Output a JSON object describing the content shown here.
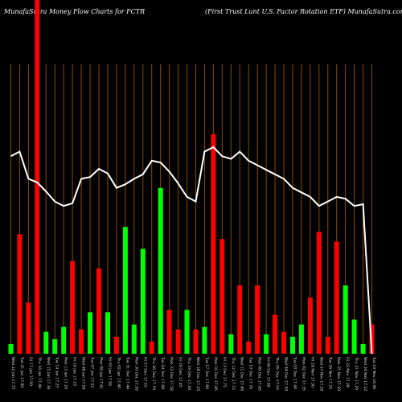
{
  "header": {
    "left": "MunafaSutra  Money Flow  Charts for FCTR",
    "right": "(First Trust Lunt U.S. Factor Rotation ETF) MunafaSutra.com"
  },
  "chart_data": {
    "type": "bar",
    "x_tick_labels": [
      "Wed 22 Jan 17.75",
      "Tue 21 Jan 17.80",
      "Fri 17 Jan 17.50",
      "Thu 16 Jan 17.46",
      "Wed 15 Jan 17.36",
      "Tue 14 Jan 17.25",
      "Mon 13 Jan 17.20",
      "Fri 10 Jan 17.23",
      "Wed 08 Jan 17.50",
      "Tue 07 Jan 17.52",
      "Mon 06 Jan 17.61",
      "Fri 03 Jan 17.56",
      "Thu 02 Jan 17.40",
      "Tue 31 Dec 17.44",
      "Mon 30 Dec 17.50",
      "Fri 27 Dec 17.55",
      "Thu 26 Dec 17.70",
      "Tue 24 Dec 17.68",
      "Mon 23 Dec 17.58",
      "Fri 20 Dec 17.45",
      "Thu 19 Dec 17.30",
      "Wed 18 Dec 17.25",
      "Tue 17 Dec 17.80",
      "Mon 16 Dec 17.85",
      "Fri 13 Dec 17.75",
      "Thu 12 Dec 17.72",
      "Wed 11 Dec 17.80",
      "Tue 10 Dec 17.70",
      "Mon 09 Dec 17.65",
      "Fri 06 Dec 17.60",
      "Thu 05 Dec 17.55",
      "Wed 04 Dec 17.50",
      "Tue 03 Dec 17.40",
      "Mon 02 Dec 17.35",
      "Fri 29 Nov 17.30",
      "Wed 27 Nov 17.20",
      "Tue 26 Nov 17.25",
      "Mon 25 Nov 17.30",
      "Fri 22 Nov 17.28",
      "Thu 21 Nov 17.20",
      "Wed 20 Nov 17.22",
      "Tue 19 Nov 16.90"
    ],
    "bar_colors": {
      "up": "#00ff00",
      "down": "#ff0000"
    },
    "bars": [
      {
        "value": 4,
        "direction": "up"
      },
      {
        "value": 49,
        "direction": "down"
      },
      {
        "value": 21,
        "direction": "down"
      },
      {
        "value": 145,
        "direction": "down"
      },
      {
        "value": 9,
        "direction": "up"
      },
      {
        "value": 6,
        "direction": "up"
      },
      {
        "value": 11,
        "direction": "up"
      },
      {
        "value": 38,
        "direction": "down"
      },
      {
        "value": 10,
        "direction": "down"
      },
      {
        "value": 17,
        "direction": "up"
      },
      {
        "value": 35,
        "direction": "down"
      },
      {
        "value": 17,
        "direction": "up"
      },
      {
        "value": 7,
        "direction": "down"
      },
      {
        "value": 52,
        "direction": "up"
      },
      {
        "value": 12,
        "direction": "up"
      },
      {
        "value": 43,
        "direction": "up"
      },
      {
        "value": 5,
        "direction": "down"
      },
      {
        "value": 68,
        "direction": "up"
      },
      {
        "value": 18,
        "direction": "down"
      },
      {
        "value": 10,
        "direction": "down"
      },
      {
        "value": 18,
        "direction": "up"
      },
      {
        "value": 10,
        "direction": "down"
      },
      {
        "value": 11,
        "direction": "up"
      },
      {
        "value": 90,
        "direction": "down"
      },
      {
        "value": 47,
        "direction": "down"
      },
      {
        "value": 8,
        "direction": "up"
      },
      {
        "value": 28,
        "direction": "down"
      },
      {
        "value": 5,
        "direction": "down"
      },
      {
        "value": 28,
        "direction": "down"
      },
      {
        "value": 8,
        "direction": "up"
      },
      {
        "value": 16,
        "direction": "down"
      },
      {
        "value": 9,
        "direction": "down"
      },
      {
        "value": 7,
        "direction": "up"
      },
      {
        "value": 12,
        "direction": "up"
      },
      {
        "value": 23,
        "direction": "down"
      },
      {
        "value": 50,
        "direction": "down"
      },
      {
        "value": 7,
        "direction": "down"
      },
      {
        "value": 46,
        "direction": "down"
      },
      {
        "value": 28,
        "direction": "up"
      },
      {
        "value": 14,
        "direction": "up"
      },
      {
        "value": 4,
        "direction": "up"
      },
      {
        "value": 12,
        "direction": "down"
      }
    ],
    "values": [
      4,
      49,
      21,
      145,
      9,
      6,
      11,
      38,
      10,
      17,
      35,
      17,
      7,
      52,
      12,
      43,
      5,
      68,
      18,
      10,
      18,
      10,
      11,
      90,
      47,
      8,
      28,
      5,
      28,
      8,
      16,
      9,
      7,
      12,
      23,
      50,
      7,
      46,
      28,
      14,
      4,
      12
    ],
    "price_line": [
      17.75,
      17.8,
      17.5,
      17.46,
      17.36,
      17.25,
      17.2,
      17.23,
      17.5,
      17.52,
      17.61,
      17.56,
      17.4,
      17.44,
      17.5,
      17.55,
      17.7,
      17.68,
      17.58,
      17.45,
      17.3,
      17.25,
      17.8,
      17.85,
      17.75,
      17.72,
      17.8,
      17.7,
      17.65,
      17.6,
      17.55,
      17.5,
      17.4,
      17.35,
      17.3,
      17.2,
      17.25,
      17.3,
      17.28,
      17.2,
      17.22,
      16.9
    ],
    "grid": true,
    "grid_color": "#8a4b00",
    "line_color": "#ffffff",
    "background": "#000000"
  }
}
